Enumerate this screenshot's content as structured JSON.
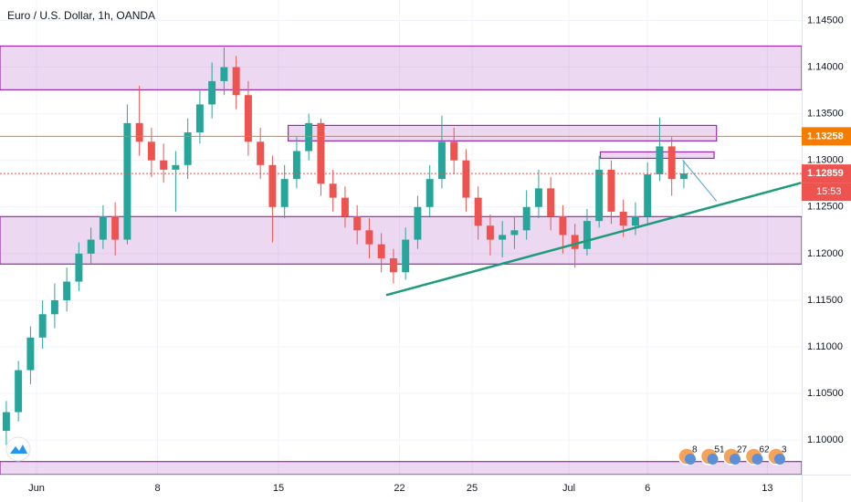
{
  "chart_data": {
    "type": "candlestick",
    "title": "Euro / U.S. Dollar, 1h, OANDA",
    "x": [
      -1.25,
      -0.75,
      -0.25,
      0.25,
      0.75,
      1.25,
      1.75,
      2.25,
      2.75,
      3.25,
      3.75,
      4.25,
      4.75,
      5.25,
      5.75,
      6.25,
      6.75,
      7.25,
      7.75,
      8.25,
      8.75,
      9.25,
      9.75,
      10.25,
      10.75,
      11.25,
      11.75,
      12.25,
      12.75,
      13.25,
      13.75,
      14.25,
      14.75,
      15.25,
      15.75,
      16.25,
      16.75,
      17.25,
      17.75,
      18.25,
      18.75,
      19.25,
      19.75,
      20.25,
      20.75,
      21.25,
      21.75,
      22.25,
      22.75,
      23.25,
      23.75,
      24.25,
      24.75,
      25.25,
      25.75,
      26.25,
      26.75
    ],
    "open": [
      1.101,
      1.103,
      1.1075,
      1.111,
      1.1135,
      1.115,
      1.117,
      1.12,
      1.1215,
      1.124,
      1.1215,
      1.134,
      1.132,
      1.13,
      1.129,
      1.1295,
      1.133,
      1.136,
      1.1385,
      1.14,
      1.137,
      1.132,
      1.1295,
      1.125,
      1.128,
      1.131,
      1.134,
      1.1275,
      1.126,
      1.124,
      1.1225,
      1.121,
      1.1195,
      1.118,
      1.1215,
      1.125,
      1.128,
      1.132,
      1.13,
      1.126,
      1.123,
      1.1215,
      1.122,
      1.1225,
      1.125,
      1.127,
      1.124,
      1.122,
      1.1205,
      1.1235,
      1.129,
      1.1245,
      1.123,
      1.124,
      1.1285,
      1.1315,
      1.128
    ],
    "high": [
      1.1042,
      1.1085,
      1.1122,
      1.115,
      1.1168,
      1.1185,
      1.1212,
      1.1228,
      1.1252,
      1.1255,
      1.136,
      1.138,
      1.1335,
      1.1318,
      1.131,
      1.1345,
      1.1375,
      1.1405,
      1.1421,
      1.1412,
      1.1385,
      1.1335,
      1.1305,
      1.1295,
      1.1325,
      1.135,
      1.1345,
      1.129,
      1.1272,
      1.1252,
      1.1238,
      1.1222,
      1.1205,
      1.1228,
      1.1262,
      1.1295,
      1.1348,
      1.1335,
      1.1312,
      1.1272,
      1.1242,
      1.1235,
      1.124,
      1.1268,
      1.129,
      1.1282,
      1.1252,
      1.1232,
      1.1248,
      1.1305,
      1.13,
      1.1258,
      1.1255,
      1.1298,
      1.1346,
      1.1325,
      1.13
    ],
    "low": [
      1.0995,
      1.102,
      1.106,
      1.1098,
      1.112,
      1.1138,
      1.116,
      1.1188,
      1.1205,
      1.1198,
      1.121,
      1.1305,
      1.1282,
      1.1276,
      1.1245,
      1.128,
      1.1318,
      1.1345,
      1.137,
      1.1355,
      1.1305,
      1.128,
      1.1212,
      1.1238,
      1.127,
      1.13,
      1.1262,
      1.1245,
      1.1228,
      1.121,
      1.1195,
      1.118,
      1.1168,
      1.1172,
      1.1205,
      1.124,
      1.127,
      1.1285,
      1.1245,
      1.1215,
      1.1198,
      1.1196,
      1.1205,
      1.1215,
      1.1238,
      1.1225,
      1.12,
      1.1185,
      1.1198,
      1.1228,
      1.1232,
      1.1218,
      1.122,
      1.1232,
      1.1278,
      1.1262,
      1.127
    ],
    "close": [
      1.103,
      1.1075,
      1.111,
      1.1135,
      1.115,
      1.117,
      1.12,
      1.1215,
      1.124,
      1.1215,
      1.134,
      1.132,
      1.13,
      1.129,
      1.1295,
      1.133,
      1.136,
      1.1385,
      1.14,
      1.137,
      1.132,
      1.1295,
      1.125,
      1.128,
      1.131,
      1.134,
      1.1275,
      1.126,
      1.124,
      1.1225,
      1.121,
      1.1195,
      1.118,
      1.1215,
      1.125,
      1.128,
      1.132,
      1.13,
      1.126,
      1.123,
      1.1215,
      1.122,
      1.1225,
      1.125,
      1.127,
      1.124,
      1.122,
      1.1205,
      1.1235,
      1.129,
      1.1245,
      1.123,
      1.124,
      1.1285,
      1.1315,
      1.128,
      1.12859
    ],
    "up_color": "#26a69a",
    "down_color": "#ef5350",
    "xlim": [
      -1.51,
      31.62
    ],
    "ylim": [
      1.0963,
      1.1472
    ],
    "xticks": [
      {
        "value": 0,
        "label": "Jun"
      },
      {
        "value": 5,
        "label": "8"
      },
      {
        "value": 10,
        "label": "15"
      },
      {
        "value": 15,
        "label": "22"
      },
      {
        "value": 18,
        "label": "25"
      },
      {
        "value": 22,
        "label": "Jul"
      },
      {
        "value": 25.25,
        "label": "6"
      },
      {
        "value": 30.2,
        "label": "13"
      }
    ],
    "yticks": [
      {
        "value": 1.145,
        "label": "1.14500"
      },
      {
        "value": 1.14,
        "label": "1.14000"
      },
      {
        "value": 1.135,
        "label": "1.13500"
      },
      {
        "value": 1.13,
        "label": "1.13000"
      },
      {
        "value": 1.125,
        "label": "1.12500"
      },
      {
        "value": 1.12,
        "label": "1.12000"
      },
      {
        "value": 1.115,
        "label": "1.11500"
      },
      {
        "value": 1.11,
        "label": "1.11000"
      },
      {
        "value": 1.105,
        "label": "1.10500"
      },
      {
        "value": 1.1,
        "label": "1.10000"
      }
    ],
    "grid": true,
    "zones": [
      {
        "top": 1.14226,
        "bottom": 1.13757,
        "color": "#9c27b0"
      },
      {
        "top": 1.12397,
        "bottom": 1.11888,
        "color": "#9c27b0"
      },
      {
        "top": 1.0977,
        "bottom": 1.0963,
        "color": "#9c27b0"
      },
      {
        "top": 1.13375,
        "bottom": 1.13209,
        "x": [
          10.4,
          28.1
        ],
        "color": "#9c27b0"
      },
      {
        "top": 1.13091,
        "bottom": 1.13022,
        "x": [
          23.3,
          28.0
        ],
        "color": "#9c27b0"
      }
    ],
    "hlines": [
      {
        "value": 1.13258,
        "color": "#f57c00",
        "style": "solid"
      },
      {
        "value": 1.12859,
        "color": "#ef5350",
        "style": "dotted"
      }
    ],
    "trendlines": [
      {
        "x": [
          14.45,
          31.6
        ],
        "y": [
          1.11555,
          1.12759
        ],
        "color": "#1e9b7c",
        "width": 2.5
      },
      {
        "x": [
          26.7,
          28.1
        ],
        "y": [
          1.13003,
          1.12563
        ],
        "color": "#4a9fd8",
        "width": 1
      }
    ],
    "countdown": "15:53",
    "badges": [
      "8",
      "51",
      "27",
      "62",
      "3"
    ]
  }
}
